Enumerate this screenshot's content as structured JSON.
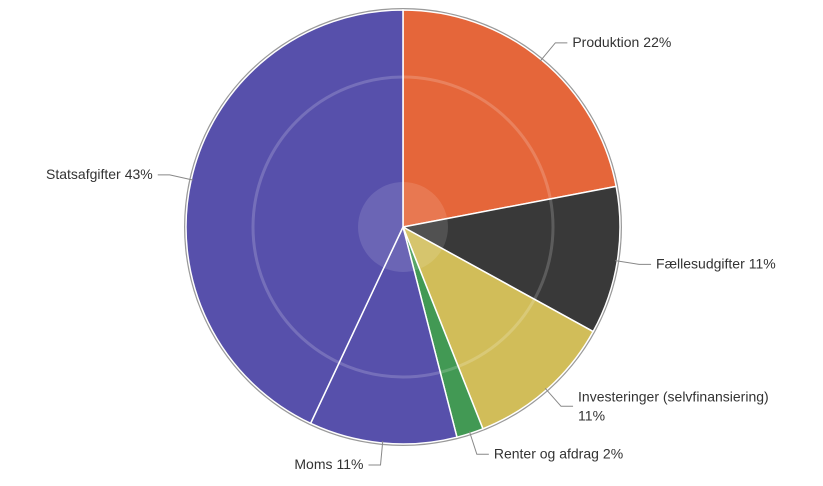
{
  "chart_data": {
    "type": "pie",
    "categories": [
      "Produktion",
      "Fællesudgifter",
      "Investeringer (selvfinansiering)",
      "Renter og afdrag",
      "Moms",
      "Statsafgifter"
    ],
    "values": [
      22,
      11,
      11,
      2,
      11,
      43
    ],
    "value_labels": [
      "22%",
      "11%",
      "11%",
      "2%",
      "11%",
      "43%"
    ],
    "colors": [
      "#ef5f2c",
      "#2b2b2b",
      "#d8c250",
      "#35984a",
      "#4d46ad",
      "#4d46ad"
    ]
  }
}
